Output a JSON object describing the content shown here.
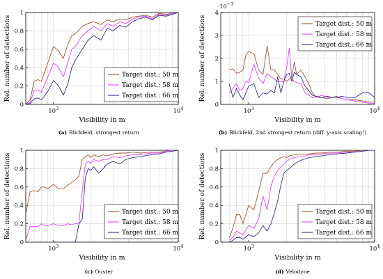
{
  "chart_data": [
    {
      "type": "line",
      "caption_label": "(a)",
      "caption_text": "Blickfeld, strongest return",
      "xlabel": "Visibility in m",
      "ylabel": "Rel. number of detections",
      "xscale": "log",
      "xlim": [
        600,
        10000
      ],
      "ylim": [
        0,
        1
      ],
      "yticks": [
        "0",
        "0.2",
        "0.4",
        "0.6",
        "0.8",
        "1"
      ],
      "xticks": [
        {
          "value": 1000,
          "base": "10",
          "exp": "3"
        },
        {
          "value": 10000,
          "base": "10",
          "exp": "4"
        }
      ],
      "grid": true,
      "legend_position": "bottom-right",
      "series": [
        {
          "name": "Target dist.: 50 m",
          "color": "#a0522d",
          "x": [
            600,
            650,
            700,
            750,
            800,
            900,
            1000,
            1100,
            1200,
            1300,
            1400,
            1500,
            1700,
            1900,
            2100,
            2400,
            2700,
            3000,
            3400,
            3800,
            4300,
            4800,
            5500,
            6200,
            7000,
            8000,
            9000,
            10000
          ],
          "y": [
            0.0,
            0.05,
            0.25,
            0.27,
            0.25,
            0.45,
            0.63,
            0.58,
            0.5,
            0.65,
            0.75,
            0.77,
            0.85,
            0.88,
            0.9,
            0.87,
            0.92,
            0.9,
            0.93,
            0.92,
            0.95,
            0.96,
            0.97,
            0.95,
            0.99,
            0.98,
            0.99,
            1.0
          ]
        },
        {
          "name": "Target dist.: 58 m",
          "color": "#e040fb",
          "x": [
            600,
            650,
            700,
            750,
            800,
            900,
            1000,
            1100,
            1200,
            1300,
            1400,
            1500,
            1700,
            1900,
            2100,
            2400,
            2700,
            3000,
            3400,
            3800,
            4300,
            4800,
            5500,
            6200,
            7000,
            8000,
            9000,
            10000
          ],
          "y": [
            0.0,
            0.02,
            0.15,
            0.16,
            0.13,
            0.3,
            0.45,
            0.4,
            0.3,
            0.45,
            0.6,
            0.63,
            0.75,
            0.8,
            0.85,
            0.8,
            0.88,
            0.85,
            0.9,
            0.88,
            0.93,
            0.95,
            0.96,
            0.93,
            0.98,
            0.97,
            0.99,
            1.0
          ]
        },
        {
          "name": "Target dist.: 66 m",
          "color": "#2c2c8c",
          "x": [
            600,
            650,
            700,
            750,
            800,
            900,
            1000,
            1100,
            1200,
            1300,
            1400,
            1500,
            1700,
            1900,
            2100,
            2400,
            2700,
            3000,
            3400,
            3800,
            4300,
            4800,
            5500,
            6200,
            7000,
            8000,
            9000,
            10000
          ],
          "y": [
            0.0,
            0.01,
            0.06,
            0.07,
            0.05,
            0.14,
            0.26,
            0.2,
            0.1,
            0.22,
            0.4,
            0.48,
            0.6,
            0.7,
            0.75,
            0.7,
            0.83,
            0.8,
            0.86,
            0.84,
            0.9,
            0.93,
            0.95,
            0.92,
            0.97,
            0.96,
            0.98,
            1.0
          ]
        }
      ]
    },
    {
      "type": "line",
      "caption_label": "(b)",
      "caption_text": "Blickfeld, 2nd strongest return (diff. y-axis scaling!)",
      "xlabel": "Visibility in m",
      "ylabel": "Rel. number of detections",
      "xscale": "log",
      "xlim": [
        600,
        10000
      ],
      "ylim": [
        0,
        4
      ],
      "y_multiplier_base": "10",
      "y_multiplier_exp": "−3",
      "yticks": [
        "0",
        "1",
        "2",
        "3",
        "4"
      ],
      "xticks": [
        {
          "value": 1000,
          "base": "10",
          "exp": "3"
        },
        {
          "value": 10000,
          "base": "10",
          "exp": "4"
        }
      ],
      "grid": true,
      "legend_position": "top-right",
      "series": [
        {
          "name": "Target dist.: 50 m",
          "color": "#a0522d",
          "x": [
            700,
            750,
            800,
            850,
            900,
            950,
            1000,
            1100,
            1200,
            1300,
            1400,
            1500,
            1600,
            1700,
            1800,
            1900,
            2000,
            2100,
            2200,
            2300,
            2400,
            2600,
            2800,
            3000,
            3200,
            3400,
            3600,
            3800,
            4200,
            4600,
            5000,
            5500,
            6000,
            7000,
            8000,
            9000,
            10000
          ],
          "y": [
            1.5,
            1.55,
            1.35,
            1.4,
            1.5,
            2.15,
            2.3,
            2.2,
            1.5,
            1.3,
            2.55,
            1.5,
            1.5,
            1.3,
            1.1,
            1.1,
            1.0,
            1.1,
            1.2,
            1.85,
            1.3,
            1.5,
            1.2,
            0.9,
            0.5,
            0.35,
            0.35,
            0.3,
            0.25,
            0.3,
            0.35,
            0.25,
            0.2,
            0.2,
            0.15,
            0.1,
            0.1
          ]
        },
        {
          "name": "Target dist.: 58 m",
          "color": "#e040fb",
          "x": [
            700,
            750,
            800,
            850,
            900,
            950,
            1000,
            1100,
            1200,
            1300,
            1400,
            1500,
            1600,
            1700,
            1800,
            1900,
            2000,
            2100,
            2200,
            2300,
            2400,
            2600,
            2800,
            3000,
            3200,
            3400,
            3600,
            3800,
            4200,
            4600,
            5000,
            5500,
            6000,
            7000,
            8000,
            9000,
            10000
          ],
          "y": [
            0.5,
            0.7,
            0.9,
            0.6,
            0.7,
            1.0,
            0.95,
            1.75,
            1.15,
            0.9,
            1.35,
            1.2,
            1.1,
            1.0,
            1.0,
            1.0,
            1.6,
            2.45,
            1.1,
            1.0,
            0.95,
            0.9,
            0.5,
            0.4,
            0.3,
            0.3,
            0.35,
            0.4,
            0.3,
            0.3,
            0.3,
            0.25,
            0.2,
            0.15,
            0.1,
            0.05,
            0.05
          ]
        },
        {
          "name": "Target dist.: 66 m",
          "color": "#2c2c8c",
          "x": [
            700,
            750,
            800,
            850,
            900,
            950,
            1000,
            1100,
            1200,
            1300,
            1400,
            1500,
            1600,
            1700,
            1800,
            1900,
            2000,
            2100,
            2200,
            2300,
            2400,
            2600,
            2800,
            3000,
            3200,
            3400,
            3600,
            3800,
            4200,
            4600,
            5000,
            5500,
            6000,
            7000,
            8000,
            9000,
            10000
          ],
          "y": [
            0.9,
            0.3,
            0.7,
            0.4,
            0.2,
            0.5,
            0.8,
            0.9,
            0.3,
            0.5,
            0.45,
            0.6,
            0.5,
            1.2,
            0.5,
            1.0,
            1.3,
            1.35,
            1.0,
            1.4,
            1.3,
            1.2,
            0.8,
            0.6,
            0.4,
            0.35,
            0.3,
            0.3,
            0.35,
            0.3,
            0.3,
            0.35,
            0.3,
            0.3,
            0.5,
            0.5,
            0.3
          ]
        }
      ]
    },
    {
      "type": "line",
      "caption_label": "(c)",
      "caption_text": "Ouster",
      "xlabel": "Visibility in m",
      "ylabel": "Rel. number of detections",
      "xscale": "log",
      "xlim": [
        600,
        10000
      ],
      "ylim": [
        0,
        1
      ],
      "yticks": [
        "0",
        "0.2",
        "0.4",
        "0.6",
        "0.8",
        "1"
      ],
      "xticks": [
        {
          "value": 1000,
          "base": "10",
          "exp": "3"
        },
        {
          "value": 10000,
          "base": "10",
          "exp": "4"
        }
      ],
      "grid": true,
      "legend_position": "bottom-right",
      "series": [
        {
          "name": "Target dist.: 50 m",
          "color": "#a0522d",
          "x": [
            600,
            650,
            700,
            750,
            800,
            850,
            900,
            1000,
            1100,
            1200,
            1300,
            1400,
            1500,
            1600,
            1700,
            1800,
            1900,
            2000,
            2100,
            2300,
            2500,
            2700,
            3000,
            3400,
            3800,
            4300,
            5000,
            6000,
            7000,
            8000,
            9000,
            10000
          ],
          "y": [
            0.3,
            0.55,
            0.56,
            0.55,
            0.6,
            0.6,
            0.58,
            0.63,
            0.58,
            0.58,
            0.62,
            0.65,
            0.68,
            0.72,
            0.9,
            0.93,
            0.95,
            0.92,
            0.95,
            0.93,
            0.95,
            0.94,
            0.96,
            0.97,
            0.97,
            0.98,
            0.97,
            0.98,
            0.98,
            0.99,
            1.0,
            1.0
          ]
        },
        {
          "name": "Target dist.: 58 m",
          "color": "#e040fb",
          "x": [
            600,
            650,
            700,
            750,
            800,
            850,
            900,
            1000,
            1100,
            1200,
            1300,
            1400,
            1500,
            1600,
            1700,
            1800,
            1900,
            2000,
            2100,
            2300,
            2500,
            2700,
            3000,
            3400,
            3800,
            4300,
            5000,
            6000,
            7000,
            8000,
            9000,
            10000
          ],
          "y": [
            0.02,
            0.17,
            0.17,
            0.17,
            0.2,
            0.18,
            0.18,
            0.2,
            0.18,
            0.18,
            0.2,
            0.19,
            0.2,
            0.21,
            0.55,
            0.85,
            0.88,
            0.86,
            0.9,
            0.88,
            0.9,
            0.9,
            0.93,
            0.92,
            0.94,
            0.95,
            0.95,
            0.97,
            0.97,
            0.99,
            1.0,
            1.0
          ]
        },
        {
          "name": "Target dist.: 66 m",
          "color": "#2c2c8c",
          "x": [
            600,
            650,
            700,
            750,
            800,
            850,
            900,
            1000,
            1100,
            1200,
            1300,
            1400,
            1500,
            1600,
            1700,
            1800,
            1900,
            2000,
            2100,
            2300,
            2500,
            2700,
            3000,
            3400,
            3800,
            4300,
            5000,
            6000,
            7000,
            8000,
            9000,
            10000
          ],
          "y": [
            0.0,
            0.0,
            0.0,
            0.0,
            0.0,
            0.0,
            0.0,
            0.0,
            0.0,
            0.0,
            0.0,
            0.0,
            0.0,
            0.2,
            0.25,
            0.7,
            0.8,
            0.78,
            0.82,
            0.75,
            0.8,
            0.85,
            0.88,
            0.85,
            0.9,
            0.92,
            0.93,
            0.95,
            0.96,
            0.98,
            0.99,
            1.0
          ]
        }
      ]
    },
    {
      "type": "line",
      "caption_label": "(d)",
      "caption_text": "Velodyne",
      "xlabel": "Visibility in m",
      "ylabel": "Rel. number of detections",
      "xscale": "log",
      "xlim": [
        600,
        10000
      ],
      "ylim": [
        0,
        1
      ],
      "yticks": [
        "0",
        "0.2",
        "0.4",
        "0.6",
        "0.8",
        "1"
      ],
      "xticks": [
        {
          "value": 1000,
          "base": "10",
          "exp": "3"
        },
        {
          "value": 10000,
          "base": "10",
          "exp": "4"
        }
      ],
      "grid": true,
      "legend_position": "bottom-right",
      "series": [
        {
          "name": "Target dist.: 50 m",
          "color": "#a0522d",
          "x": [
            700,
            750,
            800,
            850,
            900,
            1000,
            1100,
            1200,
            1300,
            1400,
            1500,
            1600,
            1700,
            1800,
            1900,
            2000,
            2100,
            2300,
            2500,
            2700,
            3000,
            3400,
            3800,
            4300,
            5000,
            6000,
            7000,
            8000,
            9000,
            10000
          ],
          "y": [
            0.05,
            0.15,
            0.3,
            0.3,
            0.2,
            0.4,
            0.35,
            0.55,
            0.75,
            0.75,
            0.82,
            0.87,
            0.9,
            0.92,
            0.93,
            0.92,
            0.94,
            0.95,
            0.95,
            0.96,
            0.96,
            0.97,
            0.97,
            0.98,
            0.98,
            0.99,
            0.99,
            1.0,
            1.0,
            1.0
          ]
        },
        {
          "name": "Target dist.: 58 m",
          "color": "#e040fb",
          "x": [
            700,
            750,
            800,
            850,
            900,
            1000,
            1100,
            1200,
            1300,
            1400,
            1500,
            1600,
            1700,
            1800,
            1900,
            2000,
            2100,
            2300,
            2500,
            2700,
            3000,
            3400,
            3800,
            4300,
            5000,
            6000,
            7000,
            8000,
            9000,
            10000
          ],
          "y": [
            0.02,
            0.05,
            0.12,
            0.1,
            0.08,
            0.18,
            0.15,
            0.25,
            0.5,
            0.35,
            0.6,
            0.72,
            0.78,
            0.82,
            0.85,
            0.88,
            0.9,
            0.92,
            0.93,
            0.93,
            0.95,
            0.95,
            0.96,
            0.97,
            0.97,
            0.98,
            0.98,
            0.99,
            1.0,
            1.0
          ]
        },
        {
          "name": "Target dist.: 66 m",
          "color": "#2c2c8c",
          "x": [
            700,
            750,
            800,
            850,
            900,
            1000,
            1100,
            1200,
            1300,
            1400,
            1500,
            1600,
            1700,
            1800,
            1900,
            2000,
            2100,
            2300,
            2500,
            2700,
            3000,
            3400,
            3800,
            4300,
            5000,
            6000,
            7000,
            8000,
            9000,
            10000
          ],
          "y": [
            0.0,
            0.02,
            0.05,
            0.05,
            0.03,
            0.08,
            0.06,
            0.1,
            0.18,
            0.12,
            0.2,
            0.32,
            0.45,
            0.62,
            0.75,
            0.78,
            0.8,
            0.85,
            0.88,
            0.9,
            0.92,
            0.93,
            0.94,
            0.95,
            0.96,
            0.97,
            0.98,
            0.99,
            1.0,
            1.0
          ]
        }
      ]
    }
  ]
}
